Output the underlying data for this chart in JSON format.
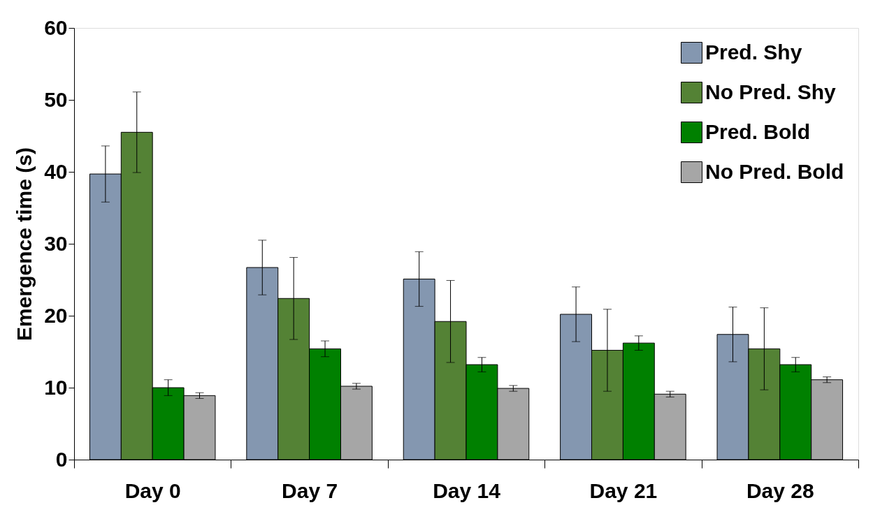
{
  "chart_data": {
    "type": "bar",
    "ylabel": "Emergence time (s)",
    "categories": [
      "Day 0",
      "Day 7",
      "Day 14",
      "Day 21",
      "Day 28"
    ],
    "series": [
      {
        "name": "Pred. Shy",
        "color": "#8497b0",
        "values": [
          39.7,
          26.7,
          25.1,
          20.2,
          17.4
        ],
        "errors": [
          3.9,
          3.8,
          3.8,
          3.8,
          3.8
        ]
      },
      {
        "name": "No Pred. Shy",
        "color": "#548235",
        "values": [
          45.5,
          22.4,
          19.2,
          15.2,
          15.4
        ],
        "errors": [
          5.6,
          5.7,
          5.7,
          5.7,
          5.7
        ]
      },
      {
        "name": "Pred. Bold",
        "color": "#008000",
        "values": [
          10.0,
          15.4,
          13.2,
          16.2,
          13.2
        ],
        "errors": [
          1.1,
          1.1,
          1.0,
          1.0,
          1.0
        ]
      },
      {
        "name": "No Pred. Bold",
        "color": "#a6a6a6",
        "values": [
          8.9,
          10.2,
          9.9,
          9.1,
          11.1
        ],
        "errors": [
          0.4,
          0.4,
          0.4,
          0.4,
          0.4
        ]
      }
    ],
    "ylim": [
      0,
      60
    ],
    "yticks": [
      0,
      10,
      20,
      30,
      40,
      50,
      60
    ],
    "grid": false,
    "legend": "top right"
  }
}
